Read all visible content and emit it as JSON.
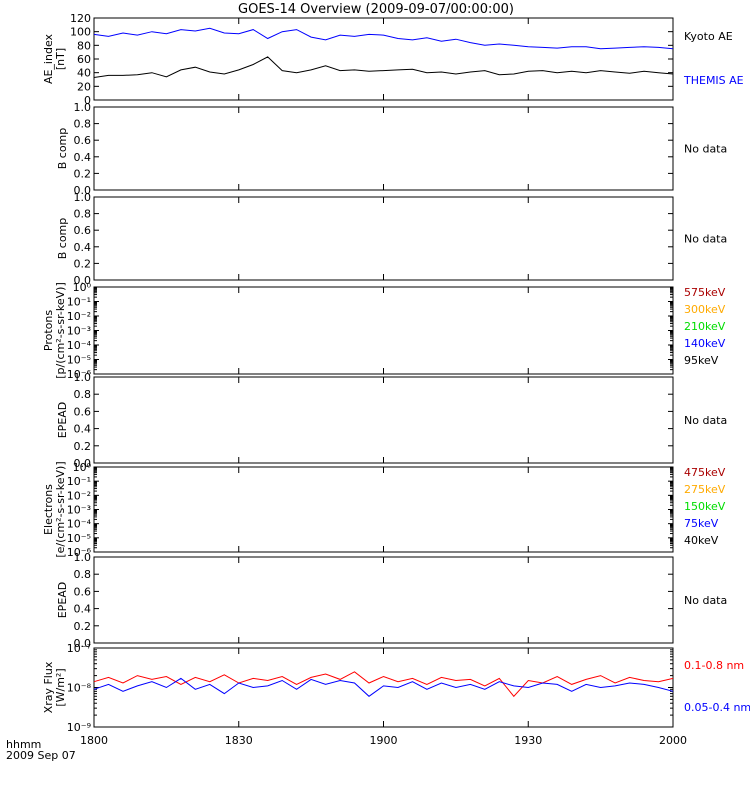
{
  "title": "GOES-14 Overview (2009-09-07/00:00:00)",
  "footer": {
    "time_label": "hhmm",
    "date_label": "2009 Sep 07"
  },
  "x_axis": {
    "ticks": [
      "1800",
      "1830",
      "1900",
      "1930",
      "2000"
    ],
    "range_hours": [
      18.0,
      20.0
    ]
  },
  "colors": {
    "red": "#ff0000",
    "orange": "#ffaa00",
    "green": "#00dd00",
    "blue": "#0000ff",
    "black": "#000000",
    "darkred": "#aa0000"
  },
  "chart_data": [
    {
      "type": "line",
      "panel": "ae",
      "ylabel": "AE_index",
      "unit": "[nT]",
      "ylim": [
        0,
        120
      ],
      "yticks": [
        "0",
        "20",
        "40",
        "60",
        "80",
        "100",
        "120"
      ],
      "x_hours": [
        18.0,
        18.05,
        18.1,
        18.15,
        18.2,
        18.25,
        18.3,
        18.35,
        18.4,
        18.45,
        18.5,
        18.55,
        18.6,
        18.65,
        18.7,
        18.75,
        18.8,
        18.85,
        18.9,
        18.95,
        19.0,
        19.05,
        19.1,
        19.15,
        19.2,
        19.25,
        19.3,
        19.35,
        19.4,
        19.45,
        19.5,
        19.55,
        19.6,
        19.65,
        19.7,
        19.75,
        19.8,
        19.85,
        19.9,
        19.95,
        20.0
      ],
      "series": [
        {
          "name": "Kyoto AE",
          "color": "#000000",
          "values": [
            33,
            36,
            36,
            37,
            40,
            34,
            44,
            48,
            41,
            38,
            44,
            52,
            63,
            43,
            40,
            44,
            50,
            43,
            44,
            42,
            43,
            44,
            45,
            40,
            41,
            38,
            41,
            43,
            37,
            38,
            42,
            43,
            40,
            42,
            40,
            43,
            41,
            39,
            42,
            40,
            38
          ]
        },
        {
          "name": "THEMIS AE",
          "color": "#0000ff",
          "values": [
            96,
            93,
            98,
            95,
            100,
            97,
            103,
            101,
            105,
            98,
            97,
            103,
            90,
            100,
            103,
            92,
            88,
            95,
            93,
            96,
            95,
            90,
            88,
            91,
            86,
            89,
            84,
            80,
            82,
            80,
            78,
            77,
            76,
            78,
            78,
            75,
            76,
            77,
            78,
            77,
            75
          ]
        }
      ]
    },
    {
      "type": "line",
      "panel": "b1",
      "ylabel": "B comp",
      "ylim": [
        0,
        1
      ],
      "yticks": [
        "0.0",
        "0.2",
        "0.4",
        "0.6",
        "0.8",
        "1.0"
      ],
      "status": "No data",
      "series": []
    },
    {
      "type": "line",
      "panel": "b2",
      "ylabel": "B comp",
      "ylim": [
        0,
        1
      ],
      "yticks": [
        "0.0",
        "0.2",
        "0.4",
        "0.6",
        "0.8",
        "1.0"
      ],
      "status": "No data",
      "series": []
    },
    {
      "type": "line",
      "panel": "protons",
      "ylabel": "Protons",
      "unit": "[p/(cm²-s-sr-keV)]",
      "log": true,
      "ylim": [
        1e-06,
        1
      ],
      "yticks": [
        "10⁻⁶",
        "10⁻⁵",
        "10⁻⁴",
        "10⁻³",
        "10⁻²",
        "10⁻¹",
        "10⁰"
      ],
      "series": [
        {
          "name": "575keV",
          "color": "#aa0000"
        },
        {
          "name": "300keV",
          "color": "#ffaa00"
        },
        {
          "name": "210keV",
          "color": "#00dd00"
        },
        {
          "name": "140keV",
          "color": "#0000ff"
        },
        {
          "name": "95keV",
          "color": "#000000"
        }
      ]
    },
    {
      "type": "line",
      "panel": "epead1",
      "ylabel": "EPEAD",
      "ylim": [
        0,
        1
      ],
      "yticks": [
        "0.0",
        "0.2",
        "0.4",
        "0.6",
        "0.8",
        "1.0"
      ],
      "status": "No data",
      "series": []
    },
    {
      "type": "line",
      "panel": "electrons",
      "ylabel": "Electrons",
      "unit": "[e/(cm²-s-sr-keV)]",
      "log": true,
      "ylim": [
        1e-06,
        1
      ],
      "yticks": [
        "10⁻⁶",
        "10⁻⁵",
        "10⁻⁴",
        "10⁻³",
        "10⁻²",
        "10⁻¹",
        "10⁰"
      ],
      "series": [
        {
          "name": "475keV",
          "color": "#aa0000"
        },
        {
          "name": "275keV",
          "color": "#ffaa00"
        },
        {
          "name": "150keV",
          "color": "#00dd00"
        },
        {
          "name": "75keV",
          "color": "#0000ff"
        },
        {
          "name": "40keV",
          "color": "#000000"
        }
      ]
    },
    {
      "type": "line",
      "panel": "epead2",
      "ylabel": "EPEAD",
      "ylim": [
        0,
        1
      ],
      "yticks": [
        "0.0",
        "0.2",
        "0.4",
        "0.6",
        "0.8",
        "1.0"
      ],
      "status": "No data",
      "series": []
    },
    {
      "type": "line",
      "panel": "xray",
      "ylabel": "Xray Flux",
      "unit": "[W/m²]",
      "log": true,
      "ylim": [
        1e-09,
        1e-07
      ],
      "yticks": [
        "10⁻⁹",
        "10⁻⁸",
        "10⁻⁷"
      ],
      "x_hours": [
        18.0,
        18.05,
        18.1,
        18.15,
        18.2,
        18.25,
        18.3,
        18.35,
        18.4,
        18.45,
        18.5,
        18.55,
        18.6,
        18.65,
        18.7,
        18.75,
        18.8,
        18.85,
        18.9,
        18.95,
        19.0,
        19.05,
        19.1,
        19.15,
        19.2,
        19.25,
        19.3,
        19.35,
        19.4,
        19.45,
        19.5,
        19.55,
        19.6,
        19.65,
        19.7,
        19.75,
        19.8,
        19.85,
        19.9,
        19.95,
        20.0
      ],
      "series": [
        {
          "name": "0.1-0.8 nm",
          "color": "#ff0000",
          "values": [
            1.4e-08,
            1.8e-08,
            1.3e-08,
            2e-08,
            1.6e-08,
            1.9e-08,
            1.2e-08,
            1.8e-08,
            1.4e-08,
            2.1e-08,
            1.3e-08,
            1.7e-08,
            1.5e-08,
            1.9e-08,
            1.2e-08,
            1.8e-08,
            2.2e-08,
            1.6e-08,
            2.5e-08,
            1.3e-08,
            1.9e-08,
            1.4e-08,
            1.7e-08,
            1.2e-08,
            1.8e-08,
            1.5e-08,
            1.6e-08,
            1.1e-08,
            1.7e-08,
            6e-09,
            1.5e-08,
            1.3e-08,
            1.9e-08,
            1.2e-08,
            1.6e-08,
            2e-08,
            1.3e-08,
            1.8e-08,
            1.5e-08,
            1.4e-08,
            1.7e-08
          ]
        },
        {
          "name": "0.05-0.4 nm",
          "color": "#0000ff",
          "values": [
            9e-09,
            1.2e-08,
            8e-09,
            1.1e-08,
            1.4e-08,
            1e-08,
            1.7e-08,
            9e-09,
            1.2e-08,
            7e-09,
            1.3e-08,
            1e-08,
            1.1e-08,
            1.5e-08,
            9e-09,
            1.6e-08,
            1.2e-08,
            1.5e-08,
            1.3e-08,
            6e-09,
            1.1e-08,
            1e-08,
            1.4e-08,
            9e-09,
            1.3e-08,
            1e-08,
            1.2e-08,
            9e-09,
            1.4e-08,
            1.1e-08,
            1e-08,
            1.3e-08,
            1.2e-08,
            8e-09,
            1.2e-08,
            1e-08,
            1.1e-08,
            1.3e-08,
            1.2e-08,
            1e-08,
            8e-09
          ]
        }
      ]
    }
  ]
}
